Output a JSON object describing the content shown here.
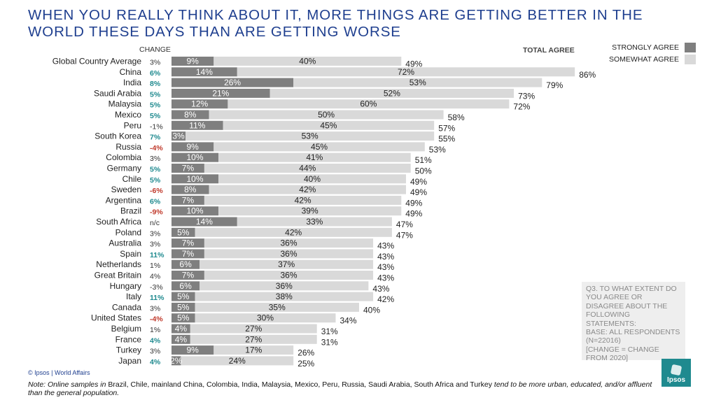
{
  "title": "WHEN YOU REALLY THINK ABOUT IT, MORE THINGS ARE GETTING BETTER IN THE WORLD THESE DAYS THAN ARE GETTING WORSE",
  "headers": {
    "change": "CHANGE",
    "total": "TOTAL AGREE"
  },
  "legend": [
    {
      "label": "STRONGLY AGREE",
      "color": "#7f7f7f"
    },
    {
      "label": "SOMEWHAT AGREE",
      "color": "#d9d9d9"
    }
  ],
  "question_box": "Q3. TO WHAT EXTENT DO YOU AGREE OR DISAGREE ABOUT THE FOLLOWING STATEMENTS:\nBASE: ALL RESPONDENTS (N=22016)\n[CHANGE = CHANGE FROM 2020]",
  "copyright": "© Ipsos | World Affairs",
  "note": {
    "prefix": "Note: Online samples in",
    "countries": " Brazil, Chile, mainland China, Colombia, India, Malaysia, Mexico, Peru, Russia, Saudi Arabia, South Africa and Turkey ",
    "suffix": "tend to be more urban, educated, and/or affluent than the general population."
  },
  "logo": {
    "text": "Ipsos"
  },
  "colors": {
    "strongly": "#7f7f7f",
    "somewhat": "#d9d9d9",
    "positive": "#1f8a8f",
    "negative": "#c0392b",
    "neutral": "#333333"
  },
  "chart_data": {
    "type": "bar",
    "orientation": "horizontal",
    "stacked": true,
    "categories": [
      "Global Country Average",
      "China",
      "India",
      "Saudi Arabia",
      "Malaysia",
      "Mexico",
      "Peru",
      "South Korea",
      "Russia",
      "Colombia",
      "Germany",
      "Chile",
      "Sweden",
      "Argentina",
      "Brazil",
      "South Africa",
      "Poland",
      "Australia",
      "Spain",
      "Netherlands",
      "Great Britain",
      "Hungary",
      "Italy",
      "Canada",
      "United States",
      "Belgium",
      "France",
      "Turkey",
      "Japan"
    ],
    "series": [
      {
        "name": "STRONGLY AGREE",
        "values": [
          9,
          14,
          26,
          21,
          12,
          8,
          11,
          3,
          9,
          10,
          7,
          10,
          8,
          7,
          10,
          14,
          5,
          7,
          7,
          6,
          7,
          6,
          5,
          5,
          5,
          4,
          4,
          9,
          2
        ],
        "labels": [
          "9%",
          "14%",
          "26%",
          "21%",
          "12%",
          "8%",
          "11%",
          "3%",
          "9%",
          "10%",
          "7%",
          "10%",
          "8%",
          "7%",
          "10%",
          "14%",
          "5%",
          "7%",
          "7%",
          "6%",
          "7%",
          "6%",
          "5%",
          "5%",
          "5%",
          "4%",
          "4%",
          "9%",
          "2%"
        ]
      },
      {
        "name": "SOMEWHAT AGREE",
        "values": [
          40,
          72,
          53,
          52,
          60,
          50,
          45,
          53,
          45,
          41,
          44,
          40,
          42,
          42,
          39,
          33,
          42,
          36,
          36,
          37,
          36,
          36,
          38,
          35,
          30,
          27,
          27,
          17,
          24
        ],
        "labels": [
          "40%",
          "72%",
          "53%",
          "52%",
          "60%",
          "50%",
          "45%",
          "53%",
          "45%",
          "41%",
          "44%",
          "40%",
          "42%",
          "42%",
          "39%",
          "33%",
          "42%",
          "36%",
          "36%",
          "37%",
          "36%",
          "36%",
          "38%",
          "35%",
          "30%",
          "27%",
          "27%",
          "17%",
          "24%"
        ]
      }
    ],
    "totals": [
      "49%",
      "86%",
      "79%",
      "73%",
      "72%",
      "58%",
      "57%",
      "55%",
      "53%",
      "51%",
      "50%",
      "49%",
      "49%",
      "49%",
      "49%",
      "47%",
      "47%",
      "43%",
      "43%",
      "43%",
      "43%",
      "43%",
      "42%",
      "40%",
      "34%",
      "31%",
      "31%",
      "26%",
      "25%"
    ],
    "change": [
      "3%",
      "6%",
      "8%",
      "5%",
      "5%",
      "5%",
      "-1%",
      "7%",
      "-4%",
      "3%",
      "5%",
      "5%",
      "-6%",
      "6%",
      "-9%",
      "n/c",
      "3%",
      "3%",
      "11%",
      "1%",
      "4%",
      "-3%",
      "11%",
      "3%",
      "-4%",
      "1%",
      "4%",
      "3%",
      "4%"
    ],
    "change_type": [
      "neutral",
      "positive",
      "positive",
      "positive",
      "positive",
      "positive",
      "neutral",
      "positive",
      "negative",
      "neutral",
      "positive",
      "positive",
      "negative",
      "positive",
      "negative",
      "neutral",
      "neutral",
      "neutral",
      "positive",
      "neutral",
      "neutral",
      "neutral",
      "positive",
      "neutral",
      "negative",
      "neutral",
      "positive",
      "neutral",
      "positive"
    ],
    "xlim": [
      0,
      100
    ]
  }
}
